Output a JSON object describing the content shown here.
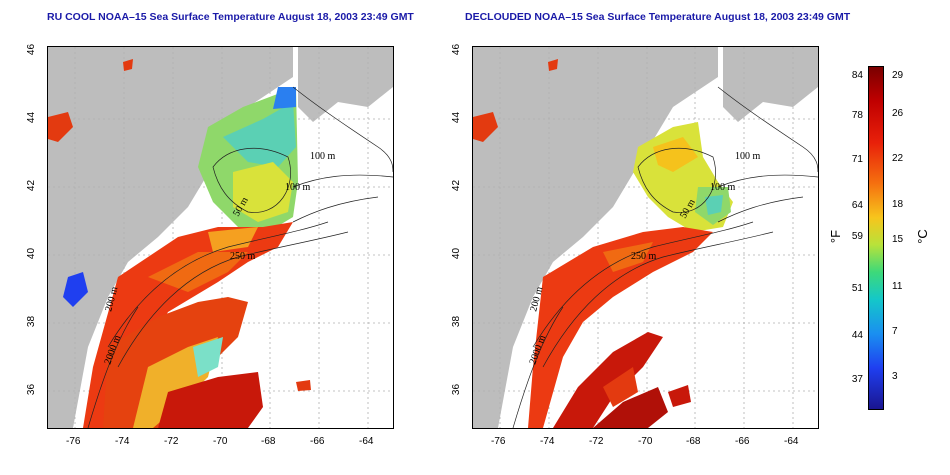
{
  "left_panel": {
    "title": "RU COOL NOAA–15 Sea Surface Temperature August 18, 2003 23:49 GMT"
  },
  "right_panel": {
    "title": "DECLOUDED NOAA–15 Sea Surface Temperature August 18, 2003 23:49 GMT"
  },
  "axes": {
    "x_ticks": [
      "-76",
      "-74",
      "-72",
      "-70",
      "-68",
      "-66",
      "-64"
    ],
    "y_ticks": [
      "36",
      "38",
      "40",
      "42",
      "44",
      "46"
    ]
  },
  "contour_labels": [
    "100 m",
    "100 m",
    "50 m",
    "250 m",
    "200 m",
    "2000 m"
  ],
  "colorbar": {
    "fahrenheit_label": "°F",
    "celsius_label": "°C",
    "fahrenheit_ticks": [
      "84",
      "78",
      "71",
      "64",
      "59",
      "51",
      "44",
      "37"
    ],
    "celsius_ticks": [
      "29",
      "26",
      "22",
      "18",
      "15",
      "11",
      "7",
      "3"
    ],
    "color_stops": [
      "#7a0000",
      "#c00000",
      "#e8200a",
      "#f5700f",
      "#f7c51c",
      "#b8e23a",
      "#3dd97a",
      "#14c7c9",
      "#1a8ff0",
      "#1f3ff0",
      "#1a1590"
    ]
  },
  "colors": {
    "land": "#bdbdbd",
    "title": "#1a1aa8",
    "grid": "#b0b0b0"
  }
}
